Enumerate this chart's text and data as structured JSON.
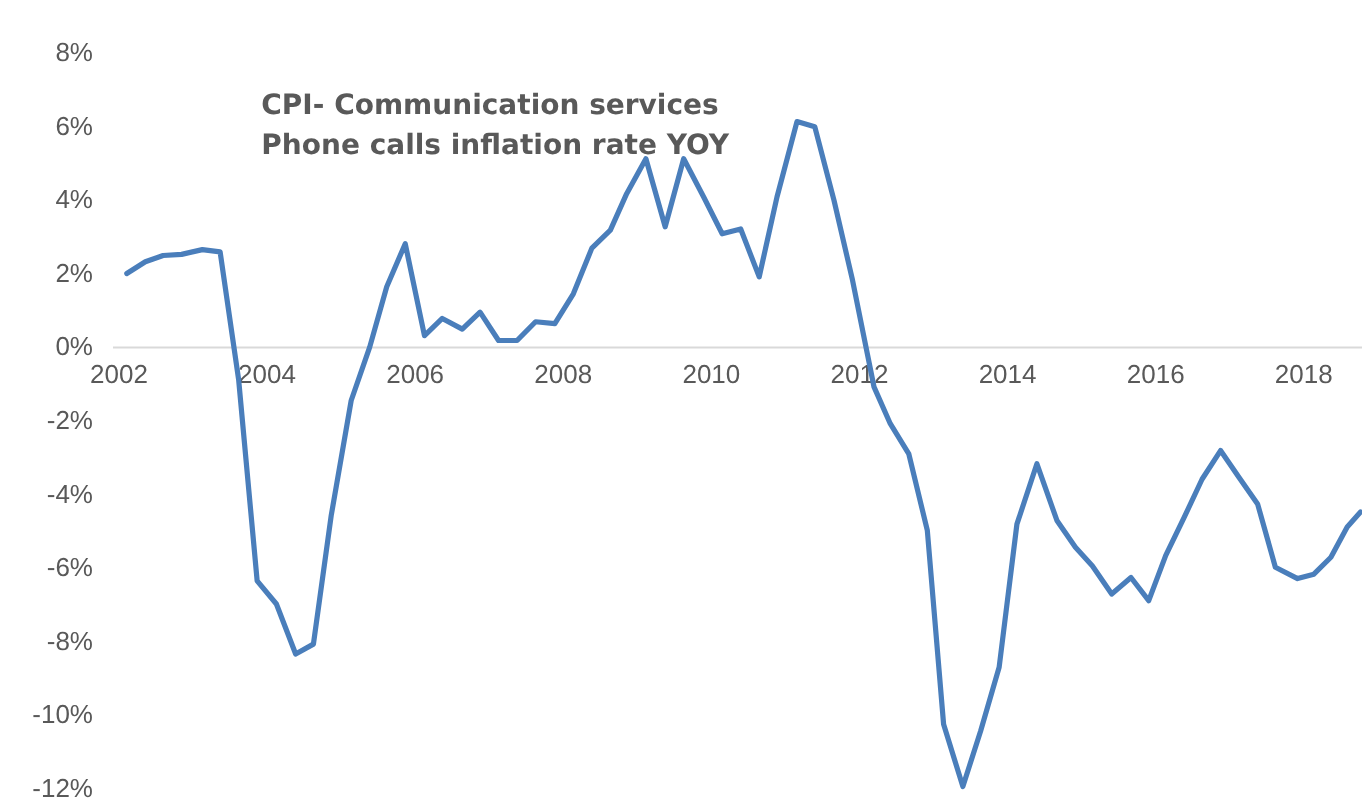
{
  "chart_data": {
    "type": "line",
    "title": "CPI- Communication services",
    "subtitle": "Phone calls inflation rate YOY",
    "x": [
      2002.12,
      2002.37,
      2002.61,
      2002.86,
      2003.14,
      2003.38,
      2003.63,
      2003.88,
      2004.14,
      2004.4,
      2004.64,
      2004.88,
      2005.15,
      2005.4,
      2005.63,
      2005.88,
      2006.14,
      2006.38,
      2006.65,
      2006.89,
      2007.14,
      2007.39,
      2007.64,
      2007.9,
      2008.15,
      2008.4,
      2008.65,
      2008.87,
      2009.13,
      2009.39,
      2009.64,
      2009.91,
      2010.16,
      2010.41,
      2010.66,
      2010.9,
      2011.17,
      2011.41,
      2011.67,
      2011.92,
      2012.12,
      2012.21,
      2012.43,
      2012.68,
      2012.93,
      2013.15,
      2013.41,
      2013.65,
      2013.9,
      2014.14,
      2014.41,
      2014.68,
      2014.93,
      2015.16,
      2015.42,
      2015.68,
      2015.92,
      2016.15,
      2016.4,
      2016.64,
      2016.89,
      2017.14,
      2017.39,
      2017.63,
      2017.93,
      2018.15,
      2018.38,
      2018.6,
      2018.78
    ],
    "series": [
      {
        "color": "#4a7ebb",
        "values": [
          1.98,
          2.3,
          2.47,
          2.5,
          2.63,
          2.57,
          -0.9,
          -6.37,
          -7.0,
          -8.36,
          -8.09,
          -4.6,
          -1.47,
          -0.02,
          1.62,
          2.79,
          0.29,
          0.76,
          0.47,
          0.93,
          0.16,
          0.16,
          0.67,
          0.62,
          1.43,
          2.67,
          3.16,
          4.15,
          5.1,
          3.25,
          5.1,
          4.06,
          3.06,
          3.19,
          1.89,
          4.06,
          6.11,
          5.97,
          3.97,
          1.8,
          -0.2,
          -1.1,
          -2.1,
          -2.92,
          -5.0,
          -10.27,
          -11.96,
          -10.45,
          -8.72,
          -4.83,
          -3.19,
          -4.73,
          -5.46,
          -5.97,
          -6.73,
          -6.28,
          -6.91,
          -5.68,
          -4.64,
          -3.61,
          -2.83,
          -3.56,
          -4.28,
          -6.0,
          -6.31,
          -6.19,
          -5.73,
          -4.91,
          -4.5
        ]
      }
    ],
    "xlim": [
      2001.92,
      2018.8
    ],
    "xticks": [
      2002,
      2004,
      2006,
      2008,
      2010,
      2012,
      2014,
      2016,
      2018
    ],
    "ylim": [
      -12,
      8
    ],
    "yticks": [
      {
        "value": -12,
        "label": "-12%"
      },
      {
        "value": -10,
        "label": "-10%"
      },
      {
        "value": -8,
        "label": "-8%"
      },
      {
        "value": -6,
        "label": "-6%"
      },
      {
        "value": -4,
        "label": "-4%"
      },
      {
        "value": -2,
        "label": "-2%"
      },
      {
        "value": 0,
        "label": "0%"
      },
      {
        "value": 2,
        "label": "2%"
      },
      {
        "value": 4,
        "label": "4%"
      },
      {
        "value": 6,
        "label": "6%"
      },
      {
        "value": 8,
        "label": "8%"
      }
    ],
    "grid": false,
    "marker": "none",
    "line_style": "solid"
  }
}
